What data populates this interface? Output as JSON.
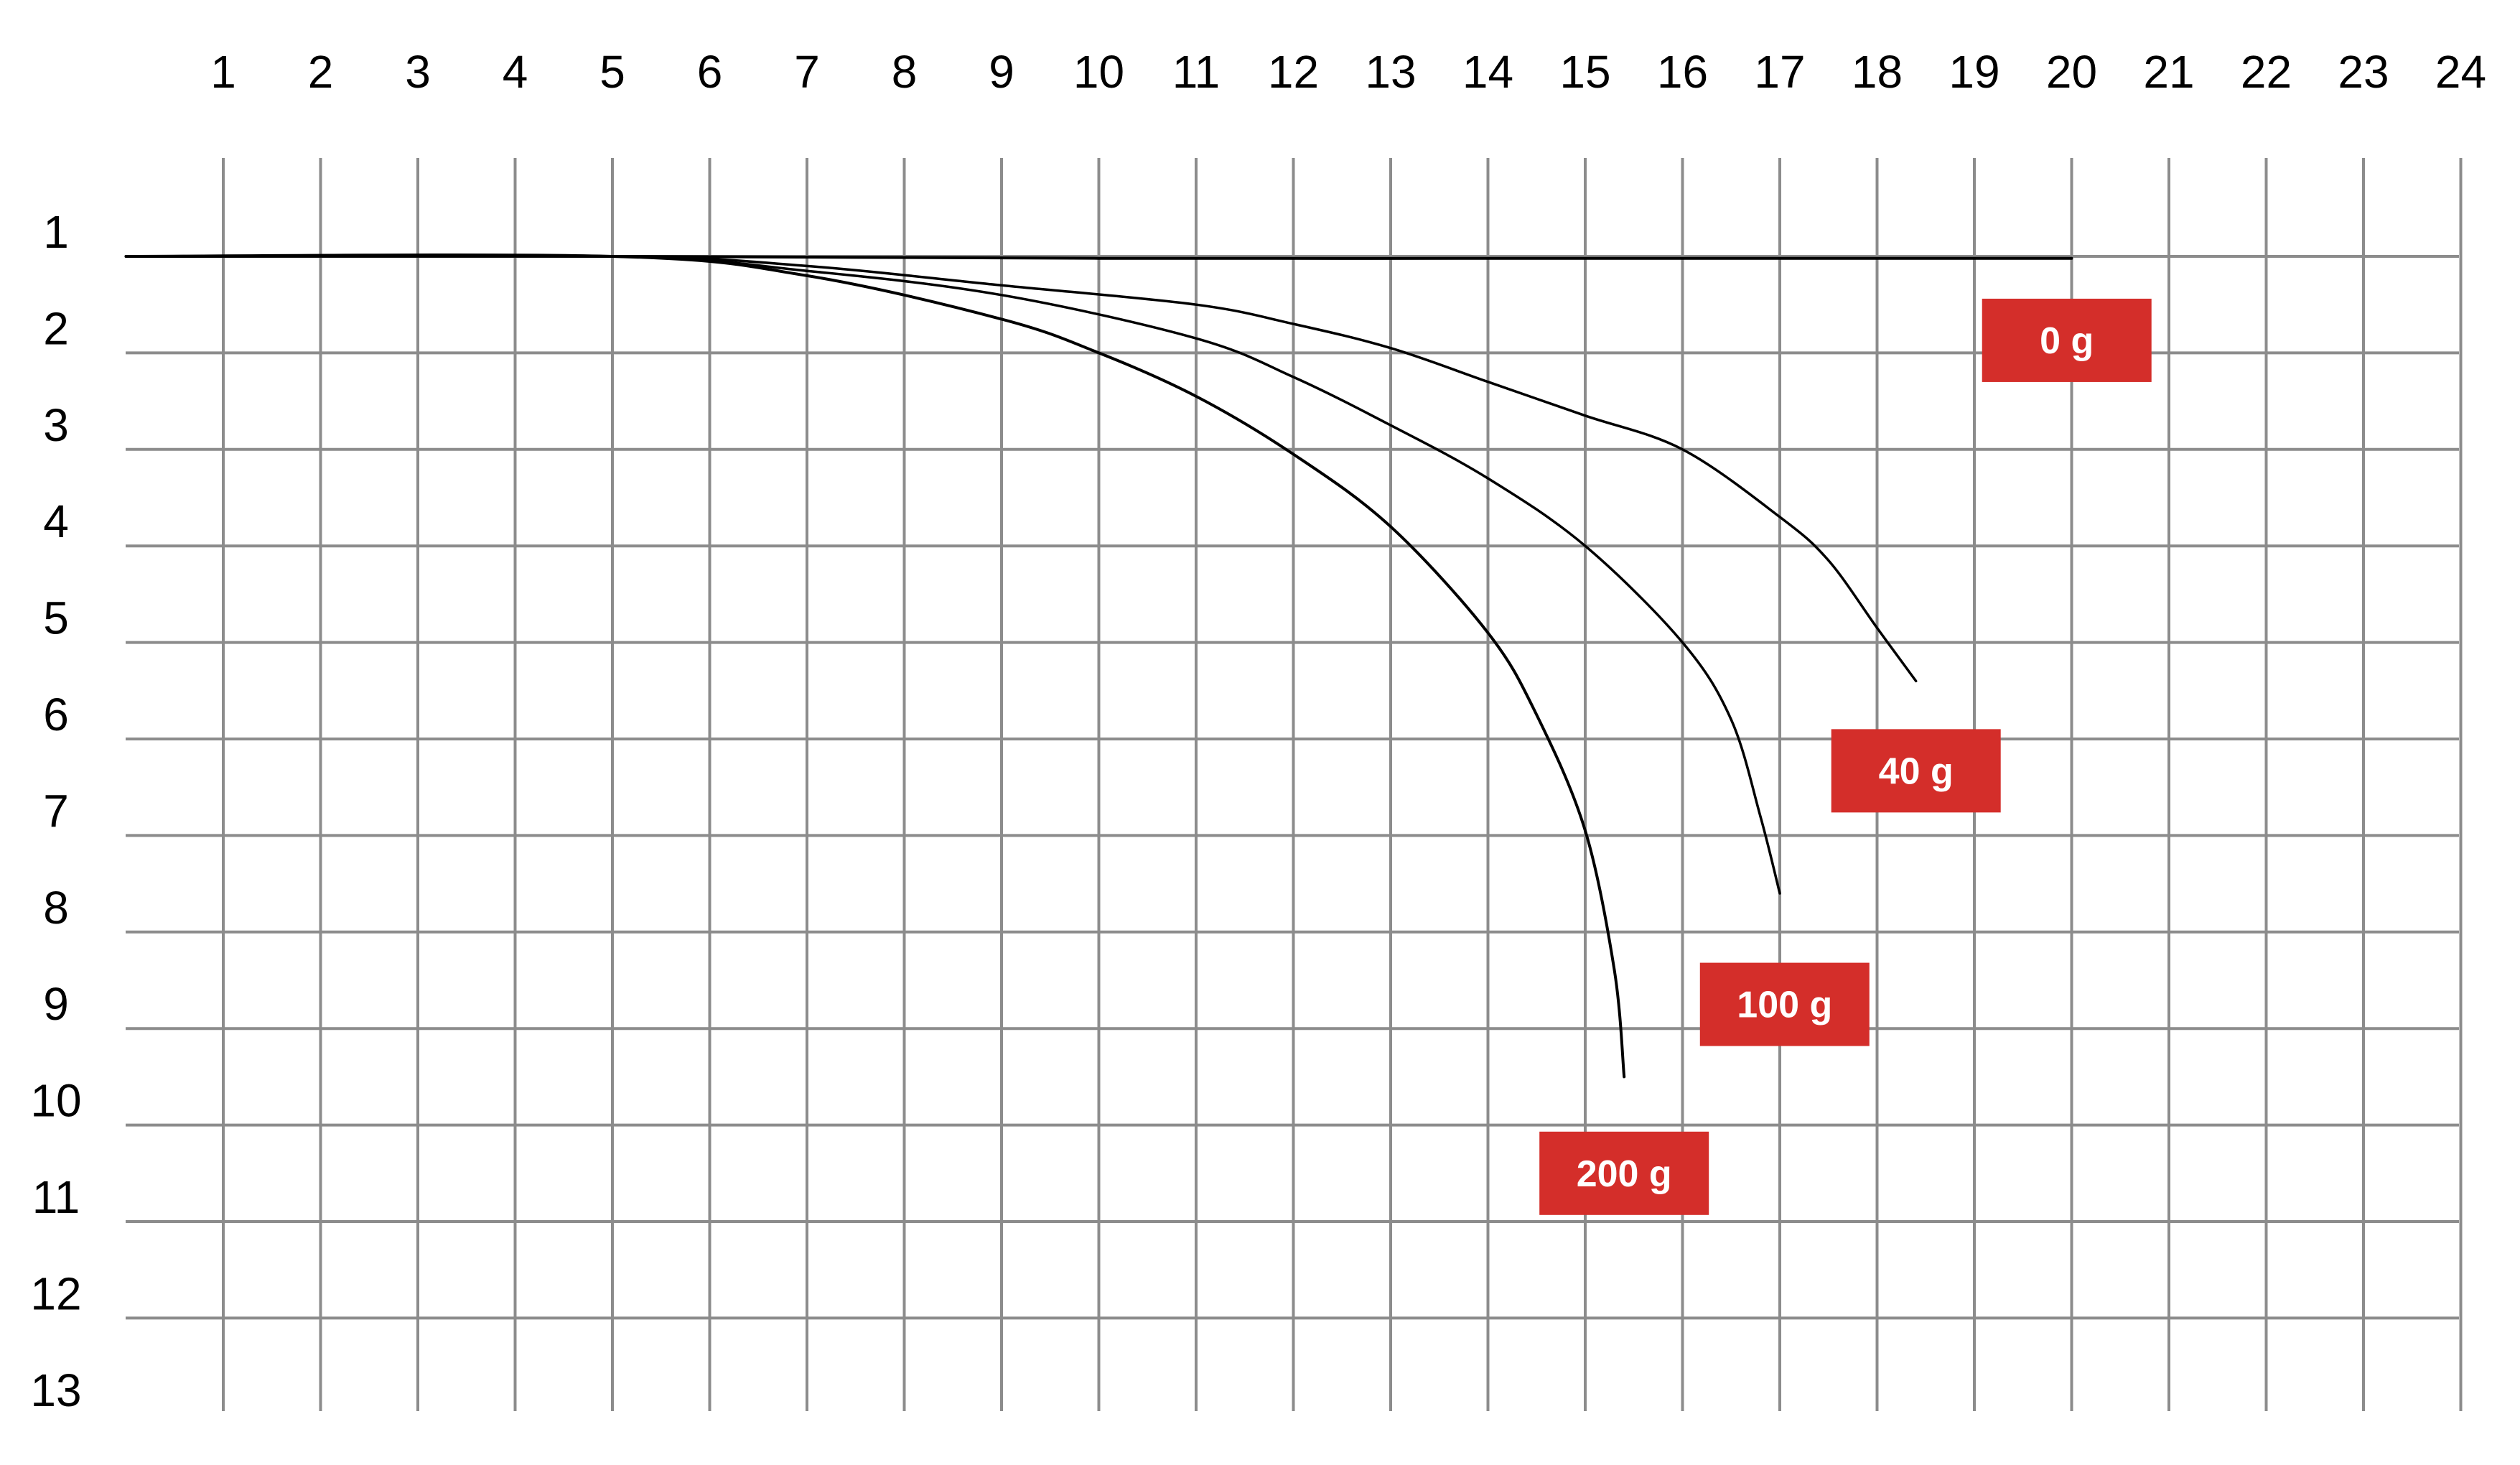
{
  "chart_data": {
    "type": "line",
    "title": "",
    "xlabel": "",
    "ylabel": "",
    "x_ticks": [
      "1",
      "2",
      "3",
      "4",
      "5",
      "6",
      "7",
      "8",
      "9",
      "10",
      "11",
      "12",
      "13",
      "14",
      "15",
      "16",
      "17",
      "18",
      "19",
      "20",
      "21",
      "22",
      "23",
      "24"
    ],
    "y_ticks": [
      "1",
      "2",
      "3",
      "4",
      "5",
      "6",
      "7",
      "8",
      "9",
      "10",
      "11",
      "12",
      "13"
    ],
    "xlim": [
      0,
      24
    ],
    "ylim": [
      1,
      13
    ],
    "y_inverted": true,
    "grid": true,
    "series": [
      {
        "name": "0 g",
        "x": [
          0,
          5,
          10,
          15,
          20
        ],
        "y": [
          1.0,
          1.0,
          1.02,
          1.02,
          1.02
        ]
      },
      {
        "name": "40 g",
        "x": [
          0,
          5,
          7,
          9,
          11,
          12,
          13,
          14,
          15,
          16,
          17,
          17.5,
          18,
          18.4
        ],
        "y": [
          1.0,
          1.0,
          1.1,
          1.3,
          1.5,
          1.7,
          1.95,
          2.3,
          2.65,
          3.0,
          3.7,
          4.15,
          4.85,
          5.4
        ]
      },
      {
        "name": "100 g",
        "x": [
          0,
          5,
          7,
          9,
          11,
          12,
          13,
          14,
          15,
          16,
          16.5,
          16.8,
          17.0
        ],
        "y": [
          1.0,
          1.0,
          1.15,
          1.4,
          1.85,
          2.25,
          2.75,
          3.3,
          4.0,
          5.0,
          5.8,
          6.8,
          7.6
        ]
      },
      {
        "name": "200 g",
        "x": [
          0,
          5,
          7,
          9,
          10,
          11,
          12,
          13,
          14,
          14.5,
          15.0,
          15.3,
          15.4
        ],
        "y": [
          1.0,
          1.0,
          1.2,
          1.65,
          2.0,
          2.45,
          3.05,
          3.8,
          4.9,
          5.75,
          6.95,
          8.4,
          9.5
        ]
      }
    ],
    "labels": [
      {
        "text": "0 g",
        "x": 19.95,
        "y": 1.87
      },
      {
        "text": "40 g",
        "x": 18.4,
        "y": 6.33
      },
      {
        "text": "100 g",
        "x": 17.05,
        "y": 8.75
      },
      {
        "text": "200 g",
        "x": 15.4,
        "y": 10.5
      }
    ],
    "colors": {
      "label_box": "#d42e2a",
      "label_text": "#ffffff",
      "grid": "#8c8c8c",
      "curve": "#000000"
    }
  }
}
